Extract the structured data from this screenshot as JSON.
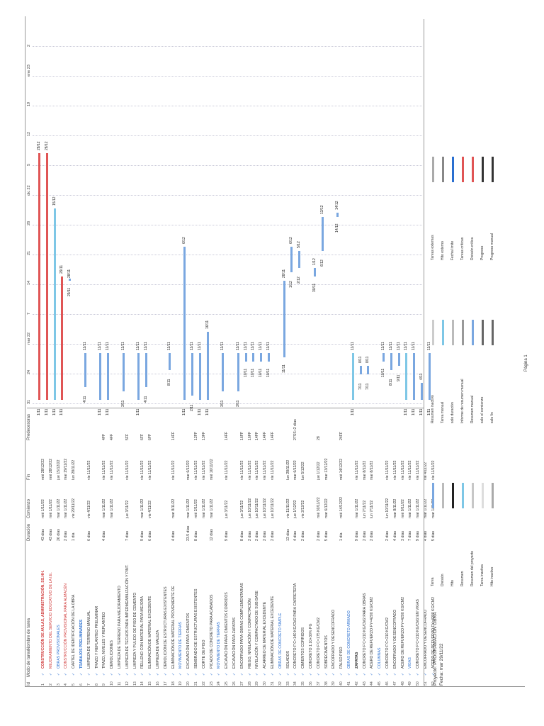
{
  "header": {
    "id": "Id",
    "mode": "Modo de tarea",
    "name": "Nombre de tarea",
    "duration": "Duración",
    "start": "Comienzo",
    "end": "Fin",
    "predecessors": "Predecesoras"
  },
  "timescale": {
    "ticks": [
      "31",
      "24",
      "mar 22",
      "7",
      "14",
      "21",
      "28",
      "dic 22",
      "5",
      "12",
      "19",
      "ene 23",
      "2"
    ]
  },
  "tasks": [
    {
      "id": "1",
      "name": "CONSTRUCCIÓN DE AULAS, ADMINISTRACIÓN, SS.HH.",
      "dur": "43 días",
      "start": "mié 1/11/22",
      "end": "mié 28/12/22",
      "pred": "",
      "style": "summary red"
    },
    {
      "id": "2",
      "name": "MEJORAMIENTO DEL SERVICIO EDUCATIVO DE LA I.E.",
      "dur": "43 días",
      "start": "mié 1/11/22",
      "end": "mié 28/12/22",
      "pred": "",
      "style": "red"
    },
    {
      "id": "3",
      "name": "OBRAS PROVISIONALES",
      "dur": "26 días",
      "start": "mar 1/11/22",
      "end": "jue 15/12/22",
      "pred": "",
      "style": "blue"
    },
    {
      "id": "4",
      "name": "CONSTRUCCIÓN PROVISIONAL PARA ALMACÉN",
      "dur": "2 días",
      "start": "mar 1/11/22",
      "end": "mar 29/11/22",
      "pred": "",
      "style": "red"
    },
    {
      "id": "5",
      "name": "CARTEL DE IDENTIFICACIÓN DE LA OBRA",
      "dur": "1 día",
      "start": "vie 29/11/22",
      "end": "lun 28/11/22",
      "pred": "",
      "style": ""
    },
    {
      "id": "6",
      "name": "TRABAJOS PRELIMINARES",
      "dur": "",
      "start": "",
      "end": "",
      "pred": "",
      "style": "summary blue"
    },
    {
      "id": "7",
      "name": "LIMPIEZA DE TERRENO MANUAL",
      "dur": "6 días",
      "start": "vie 4/11/22",
      "end": "vie 11/11/22",
      "pred": "",
      "style": ""
    },
    {
      "id": "8",
      "name": "TRAZO Y REPLANTEO PRELIMINAR",
      "dur": "",
      "start": "",
      "end": "",
      "pred": "",
      "style": ""
    },
    {
      "id": "9",
      "name": "TRAZO, NIVELES Y REPLANTEO",
      "dur": "4 días",
      "start": "mar 1/11/22",
      "end": "vie 11/11/22",
      "pred": "4FF",
      "style": ""
    },
    {
      "id": "10",
      "name": "DEMOLICIONES",
      "dur": "",
      "start": "mar 1/11/22",
      "end": "vie 11/11/22",
      "pred": "4FF",
      "style": ""
    },
    {
      "id": "11",
      "name": "LIMPIEZA DE TERRENO PARA MEJORAMIENTO",
      "dur": "",
      "start": "",
      "end": "",
      "pred": "",
      "style": ""
    },
    {
      "id": "12",
      "name": "LIMPIEZA DE TECHOS PARA IMPERMEABILIZACIÓN Y PINT.",
      "dur": "7 días",
      "start": "jue 3/11/22",
      "end": "vie 11/11/22",
      "pred": "5FF",
      "style": ""
    },
    {
      "id": "13",
      "name": "LIMPIEZA Y PULIDO DE PISO DE CEMENTO",
      "dur": "",
      "start": "",
      "end": "",
      "pred": "",
      "style": ""
    },
    {
      "id": "14",
      "name": "RELLENO CON MATERIAL PARA MEJORA",
      "dur": "9 días",
      "start": "mar 1/11/22",
      "end": "vie 11/11/22",
      "pred": "6FF",
      "style": ""
    },
    {
      "id": "15",
      "name": "ELIMINACIÓN DE MATERIAL EXCEDENTE",
      "dur": "6 días",
      "start": "vie 4/11/22",
      "end": "vie 11/11/22",
      "pred": "6FF",
      "style": ""
    },
    {
      "id": "16",
      "name": "LIMPIEZA DE MALEZA",
      "dur": "",
      "start": "",
      "end": "",
      "pred": "",
      "style": ""
    },
    {
      "id": "17",
      "name": "DEMOLICIÓN DE ESTRUCTURAS EXISTENTES",
      "dur": "",
      "start": "",
      "end": "",
      "pred": "",
      "style": ""
    },
    {
      "id": "18",
      "name": "ELIMINACIÓN DE MATERIAL PROVENIENTE DE",
      "dur": "4 días",
      "start": "mar 8/11/22",
      "end": "vie 11/11/22",
      "pred": "14FF",
      "style": ""
    },
    {
      "id": "19",
      "name": "MOVIMIENTO DE TIERRAS",
      "dur": "",
      "start": "",
      "end": "",
      "pred": "",
      "style": "blue"
    },
    {
      "id": "20",
      "name": "EXCAVACIÓN PARA CIMIENTOS",
      "dur": "23.5 días",
      "start": "mar 1/11/22",
      "end": "mar 6/12/22",
      "pred": "",
      "style": ""
    },
    {
      "id": "21",
      "name": "SEMBRADO DE ESTRUCTURAS EXISTENTES",
      "dur": "8 días",
      "start": "mié 2/11/22",
      "end": "vie 11/11/22",
      "pred": "12FF",
      "style": ""
    },
    {
      "id": "22",
      "name": "CORTE DE PISO",
      "dur": "",
      "start": "mar 1/11/22",
      "end": "vie 11/11/22",
      "pred": "13FF",
      "style": ""
    },
    {
      "id": "23",
      "name": "PICADO DE CONCRETO PARA ACABADOS",
      "dur": "12 días",
      "start": "mar 1/11/22",
      "end": "mié 16/11/22",
      "pred": "",
      "style": ""
    },
    {
      "id": "24",
      "name": "MOVIMIENTO DE TIERRAS",
      "dur": "",
      "start": "",
      "end": "",
      "pred": "",
      "style": "blue"
    },
    {
      "id": "25",
      "name": "EXCAVACIÓN PARA CIMIENTOS CORRIDOS",
      "dur": "9 días",
      "start": "jue 3/11/22",
      "end": "vie 11/11/22",
      "pred": "14FF",
      "style": ""
    },
    {
      "id": "26",
      "name": "EXCAVACIÓN PARA ZAPATAS",
      "dur": "",
      "start": "",
      "end": "",
      "pred": "",
      "style": ""
    },
    {
      "id": "27",
      "name": "ENCOFRADO PARA OBRAS COMPLEMENTARIAS",
      "dur": "8 días",
      "start": "jue 3/11/22",
      "end": "vie 11/11/22",
      "pred": "16FF",
      "style": ""
    },
    {
      "id": "28",
      "name": "RIEGO, NIVELACIÓN Y COMPACTACIÓN",
      "dur": "2 días",
      "start": "jue 10/11/22",
      "end": "vie 11/11/22",
      "pred": "16FF",
      "style": ""
    },
    {
      "id": "29",
      "name": "NIVELACIÓN Y COMPACTADO DE SUB BASE",
      "dur": "2 días",
      "start": "jue 10/11/22",
      "end": "vie 11/11/22",
      "pred": "14FF",
      "style": ""
    },
    {
      "id": "30",
      "name": "ACARREO DE MATERIAL EXCEDENTE",
      "dur": "2 días",
      "start": "jue 10/11/22",
      "end": "vie 11/11/22",
      "pred": "14FF",
      "style": ""
    },
    {
      "id": "31",
      "name": "ELIMINACIÓN DE MATERIAL EXCEDENTE",
      "dur": "2 días",
      "start": "jue 10/11/22",
      "end": "vie 11/11/22",
      "pred": "14FF",
      "style": ""
    },
    {
      "id": "32",
      "name": "OBRAS DE CONCRETO SIMPLE",
      "dur": "",
      "start": "",
      "end": "",
      "pred": "",
      "style": "blue"
    },
    {
      "id": "33",
      "name": "SOLADOS",
      "dur": "13 días",
      "start": "vie 11/11/22",
      "end": "lun 28/11/22",
      "pred": "",
      "style": ""
    },
    {
      "id": "34",
      "name": "CONCRETO F'C=140 KG/CM2 PARA CARRETERA",
      "dur": "4 días",
      "start": "jue 1/12/22",
      "end": "mar 6/12/22",
      "pred": "27SS+2 días",
      "style": ""
    },
    {
      "id": "35",
      "name": "CIMIENTOS CORRIDOS",
      "dur": "2 días",
      "start": "vie 2/12/22",
      "end": "lun 5/12/22",
      "pred": "",
      "style": ""
    },
    {
      "id": "36",
      "name": "CONCRETO 1:10+30% PG",
      "dur": "",
      "start": "",
      "end": "",
      "pred": "",
      "style": ""
    },
    {
      "id": "37",
      "name": "CONCRETO F'C=175 KG/CM2",
      "dur": "2 días",
      "start": "mié 30/11/22",
      "end": "jue 1/12/22",
      "pred": "28",
      "style": ""
    },
    {
      "id": "38",
      "name": "SOBRECIMIENTOS",
      "dur": "5 días",
      "start": "mar 6/12/22",
      "end": "mar 13/12/22",
      "pred": "",
      "style": ""
    },
    {
      "id": "39",
      "name": "ENCOFRADO Y DESENCOFRADO",
      "dur": "",
      "start": "",
      "end": "",
      "pred": "",
      "style": ""
    },
    {
      "id": "40",
      "name": "FALSO PISO",
      "dur": "1 día",
      "start": "mié 14/12/22",
      "end": "mié 14/12/22",
      "pred": "24FF",
      "style": ""
    },
    {
      "id": "41",
      "name": "OBRAS DE CONCRETO ARMADO",
      "dur": "",
      "start": "",
      "end": "",
      "pred": "",
      "style": "blue"
    },
    {
      "id": "42",
      "name": "ZAPATAS",
      "dur": "9 días",
      "start": "mar 1/11/22",
      "end": "vie 11/11/22",
      "pred": "",
      "style": "summary"
    },
    {
      "id": "43",
      "name": "CONCRETO F'C=210 KG/CM2 PARA OBRAS",
      "dur": "2 días",
      "start": "lun 7/11/22",
      "end": "mar 8/11/22",
      "pred": "",
      "style": ""
    },
    {
      "id": "44",
      "name": "ACERO DE REFUERZO FY=4200 KG/CM2",
      "dur": "2 días",
      "start": "lun 7/11/22",
      "end": "mar 8/11/22",
      "pred": "",
      "style": ""
    },
    {
      "id": "45",
      "name": "COLUMNAS",
      "dur": "",
      "start": "",
      "end": "",
      "pred": "",
      "style": "blue"
    },
    {
      "id": "46",
      "name": "CONCRETO F'C=210 KG/CM2",
      "dur": "2 días",
      "start": "lun 10/11/22",
      "end": "vie 11/11/22",
      "pred": "",
      "style": ""
    },
    {
      "id": "47",
      "name": "ENCOFRADO Y DESENCOFRADO",
      "dur": "4 días",
      "start": "mar 8/11/22",
      "end": "vie 11/11/22",
      "pred": "",
      "style": ""
    },
    {
      "id": "48",
      "name": "ACERO DE REFUERZO FY=4200 KG/CM2",
      "dur": "3 días",
      "start": "mié 9/11/22",
      "end": "vie 11/11/22",
      "pred": "",
      "style": ""
    },
    {
      "id": "49",
      "name": "VIGAS",
      "dur": "7 días",
      "start": "mar 1/11/22",
      "end": "vie 11/11/22",
      "pred": "",
      "style": "blue"
    },
    {
      "id": "50",
      "name": "CONCRETO F'C=210 KG/CM2 EN VIGAS",
      "dur": "9 días",
      "start": "mar 1/11/22",
      "end": "vie 11/11/22",
      "pred": "",
      "style": ""
    },
    {
      "id": "51",
      "name": "ENCOFRADO Y DESENCOFRADO",
      "dur": "4 días",
      "start": "mar 1/11/22",
      "end": "vie 4/11/22",
      "pred": "",
      "style": ""
    },
    {
      "id": "52",
      "name": "ACERO DE REFUERZO FY=4200 KG/CM2",
      "dur": "5 días",
      "start": "mar 1/11/22",
      "end": "vie 11/11/22",
      "pred": "",
      "style": ""
    }
  ],
  "bars_meta": {
    "start_label": "1/11",
    "labels": [
      "1/11",
      "4/11",
      "7/11",
      "9/11",
      "10/11",
      "11/11",
      "14/11",
      "16/11",
      "17/11",
      "28/11",
      "1/12",
      "2/12",
      "5/12",
      "6/12",
      "7/12",
      "13/12",
      "14/12"
    ]
  },
  "legend": {
    "project": "Proyecto: PROGRAMACIÓN OBRA",
    "date": "Fecha: mar 29/11/22",
    "items": [
      {
        "label": "Tarea",
        "color": "#7aa7e0"
      },
      {
        "label": "División",
        "color": "#bbbbbb"
      },
      {
        "label": "Hito",
        "color": "#222222"
      },
      {
        "label": "Resumen",
        "color": "#7ec7e6"
      },
      {
        "label": "Resumen del proyecto",
        "color": "#c7c7c7"
      },
      {
        "label": "Tarea inactiva",
        "color": "#dddddd"
      },
      {
        "label": "Hito inactivo",
        "color": "#aaaaaa"
      },
      {
        "label": "Resumen inactivo",
        "color": "#cccccc"
      },
      {
        "label": "Tarea manual",
        "color": "#7ec7e6"
      },
      {
        "label": "solo duración",
        "color": "#bbbbbb"
      },
      {
        "label": "Informe de resumen manual",
        "color": "#999999"
      },
      {
        "label": "Resumen manual",
        "color": "#7aa7e0"
      },
      {
        "label": "solo el comienzo",
        "color": "#666666"
      },
      {
        "label": "solo fin",
        "color": "#666666"
      },
      {
        "label": "Tareas externas",
        "color": "#aaaaaa"
      },
      {
        "label": "Hito externo",
        "color": "#888888"
      },
      {
        "label": "Fecha límite",
        "color": "#2a6fd0"
      },
      {
        "label": "Tareas críticas",
        "color": "#e05555"
      },
      {
        "label": "División crítica",
        "color": "#e05555"
      },
      {
        "label": "Progreso",
        "color": "#333333"
      },
      {
        "label": "Progreso manual",
        "color": "#333333"
      }
    ]
  },
  "footer": {
    "page": "Página 1"
  },
  "colors": {
    "accent_red": "#e05555",
    "accent_blue": "#2a6fd0",
    "bar_blue": "#7aa7e0"
  }
}
